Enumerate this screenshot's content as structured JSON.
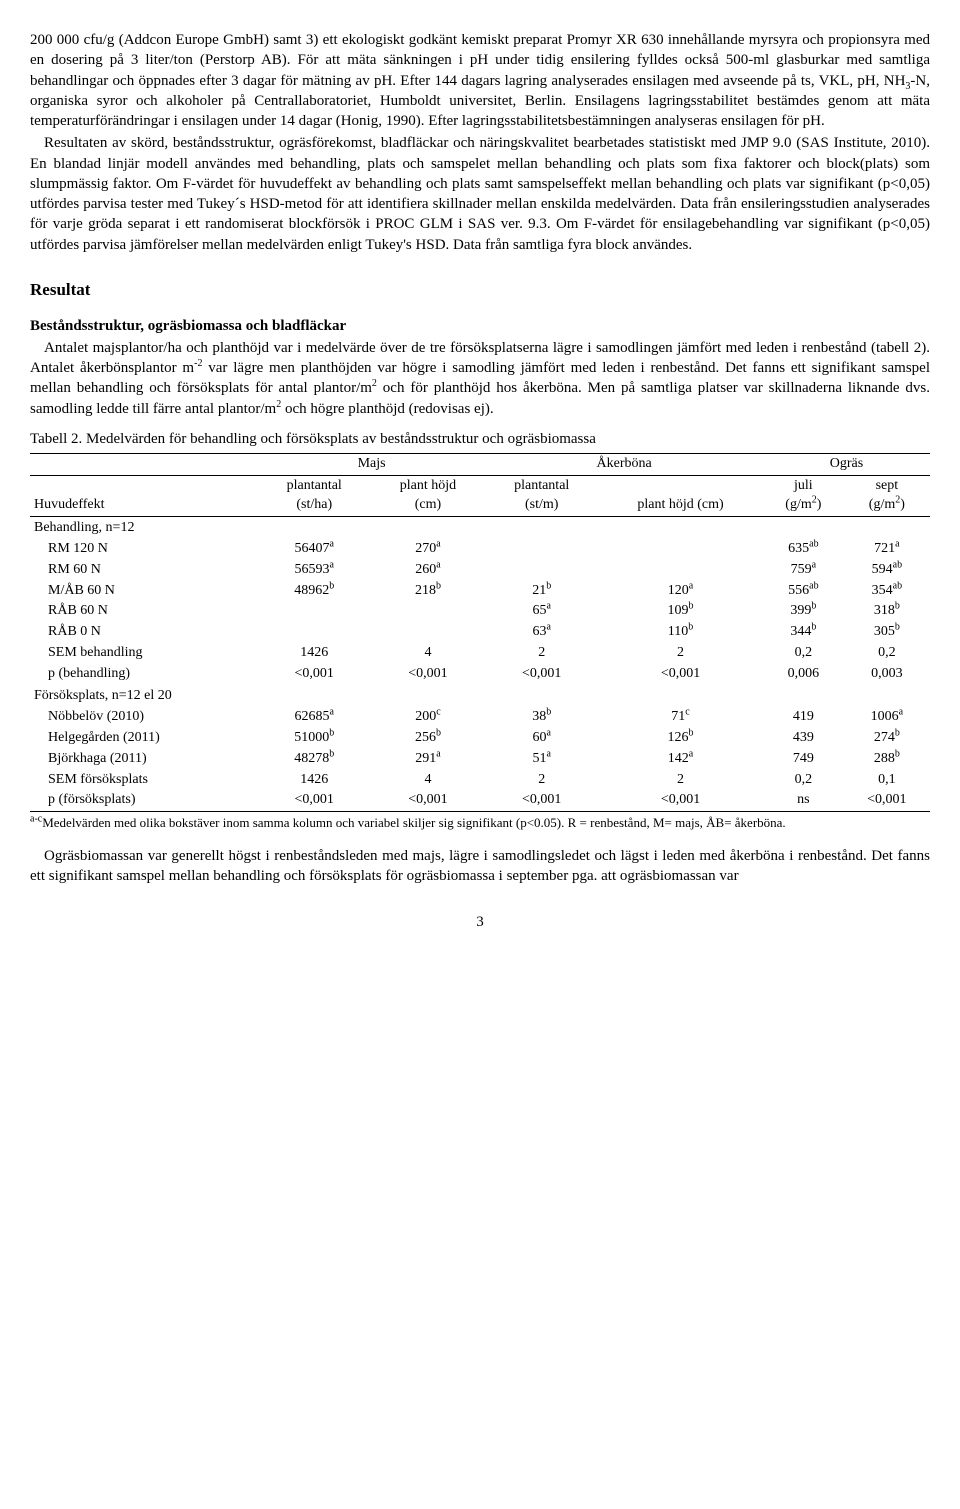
{
  "para1": "200 000 cfu/g (Addcon Europe GmbH) samt 3) ett ekologiskt godkänt kemiskt preparat Promyr XR 630 innehållande myrsyra och propionsyra med en dosering på 3 liter/ton (Perstorp AB). För att mäta sänkningen i pH under tidig ensilering fylldes också 500-ml glasburkar med samtliga behandlingar och öppnades efter 3 dagar för mätning av pH. Efter 144 dagars lagring analyserades ensilagen med avseende på ts, VKL, pH, NH",
  "para1b": "-N, organiska syror och alkoholer på Centrallaboratoriet, Humboldt universitet, Berlin. Ensilagens lagringsstabilitet bestämdes genom att mäta temperaturförändringar i ensilagen under 14 dagar (Honig, 1990). Efter lagringsstabilitetsbestämningen analyseras ensilagen för pH.",
  "para2": "Resultaten av skörd, beståndsstruktur, ogräsförekomst, bladfläckar och näringskvalitet bearbetades statistiskt med JMP 9.0 (SAS Institute, 2010). En blandad linjär modell användes med behandling, plats och samspelet mellan behandling och plats som fixa faktorer och block(plats) som slumpmässig faktor. Om F-värdet för huvudeffekt av behandling och plats samt samspelseffekt mellan behandling och plats var signifikant (p<0,05) utfördes parvisa tester med Tukey´s HSD-metod för att identifiera skillnader mellan enskilda medelvärden. Data från ensileringsstudien analyserades för varje gröda separat i ett randomiserat blockförsök i PROC GLM i SAS ver. 9.3. Om F-värdet för ensilagebehandling var signifikant (p<0,05) utfördes parvisa jämförelser mellan medelvärden enligt Tukey's HSD. Data från samtliga fyra block användes.",
  "resultat_title": "Resultat",
  "sub_title": "Beståndsstruktur, ogräsbiomassa och bladfläckar",
  "para3a": "Antalet majsplantor/ha och planthöjd var i medelvärde över de tre försöksplatserna lägre i samodlingen jämfört med leden i renbestånd (tabell 2). Antalet åkerbönsplantor m",
  "para3b": " var lägre men planthöjden var högre i samodling jämfört med leden i renbestånd. Det fanns ett signifikant samspel mellan behandling och försöksplats för antal plantor/m",
  "para3c": " och för planthöjd hos åkerböna. Men på samtliga platser var skillnaderna liknande dvs. samodling ledde till färre antal plantor/m",
  "para3d": " och högre planthöjd (redovisas ej).",
  "table_caption": "Tabell 2. Medelvärden för behandling och försöksplats av beståndsstruktur och ogräsbiomassa",
  "group_headers": [
    "",
    "Majs",
    "Åkerböna",
    "Ogräs"
  ],
  "col_headers": {
    "c0": "Huvudeffekt",
    "c1a": "plantantal",
    "c1b": "(st/ha)",
    "c2a": "plant höjd",
    "c2b": "(cm)",
    "c3a": "plantantal",
    "c3b": "(st/m)",
    "c4a": "plant höjd (cm)",
    "c5a": "juli",
    "c5b": "(g/m",
    "c6a": "sept",
    "c6b": "(g/m"
  },
  "section_rows": {
    "beh": "Behandling, n=12",
    "plats": "Försöksplats, n=12 el 20"
  },
  "rows": [
    {
      "l": "RM 120 N",
      "v": [
        "56407",
        "a",
        "270",
        "a",
        "",
        "",
        "",
        "",
        "635",
        "ab",
        "721",
        "a"
      ]
    },
    {
      "l": "RM 60 N",
      "v": [
        "56593",
        "a",
        "260",
        "a",
        "",
        "",
        "",
        "",
        "759",
        "a",
        "594",
        "ab"
      ]
    },
    {
      "l": "M/ÅB 60 N",
      "v": [
        "48962",
        "b",
        "218",
        "b",
        "21",
        "b",
        "120",
        "a",
        "556",
        "ab",
        "354",
        "ab"
      ]
    },
    {
      "l": "RÅB 60 N",
      "v": [
        "",
        "",
        "",
        "",
        "65",
        "a",
        "109",
        "b",
        "399",
        "b",
        "318",
        "b"
      ]
    },
    {
      "l": "RÅB 0 N",
      "v": [
        "",
        "",
        "",
        "",
        "63",
        "a",
        "110",
        "b",
        "344",
        "b",
        "305",
        "b"
      ]
    },
    {
      "l": "SEM behandling",
      "v": [
        "1426",
        "",
        "4",
        "",
        "2",
        "",
        "2",
        "",
        "0,2",
        "",
        "0,2",
        ""
      ]
    },
    {
      "l": "p (behandling)",
      "v": [
        "<0,001",
        "",
        "<0,001",
        "",
        "<0,001",
        "",
        "<0,001",
        "",
        "0,006",
        "",
        "0,003",
        ""
      ]
    }
  ],
  "rows2": [
    {
      "l": "Nöbbelöv (2010)",
      "v": [
        "62685",
        "a",
        "200",
        "c",
        "38",
        "b",
        "71",
        "c",
        "419",
        "",
        "1006",
        "a"
      ]
    },
    {
      "l": "Helgegården (2011)",
      "v": [
        "51000",
        "b",
        "256",
        "b",
        "60",
        "a",
        "126",
        "b",
        "439",
        "",
        "274",
        "b"
      ]
    },
    {
      "l": "Björkhaga (2011)",
      "v": [
        "48278",
        "b",
        "291",
        "a",
        "51",
        "a",
        "142",
        "a",
        "749",
        "",
        "288",
        "b"
      ]
    },
    {
      "l": "SEM försöksplats",
      "v": [
        "1426",
        "",
        "4",
        "",
        "2",
        "",
        "2",
        "",
        "0,2",
        "",
        "0,1",
        ""
      ]
    },
    {
      "l": "p (försöksplats)",
      "v": [
        "<0,001",
        "",
        "<0,001",
        "",
        "<0,001",
        "",
        "<0,001",
        "",
        "ns",
        "",
        "<0,001",
        ""
      ]
    }
  ],
  "footnote_a": "a-c",
  "footnote_b": "Medelvärden med olika bokstäver inom samma kolumn och variabel skiljer sig signifikant (p<0.05). R = renbestånd, M= majs, ÅB= åkerböna.",
  "para4": "Ogräsbiomassan var generellt högst i renbeståndsleden med majs, lägre i samodlingsledet och lägst i leden med åkerböna i renbestånd. Det fanns ett signifikant samspel mellan behandling och försöksplats för ogräsbiomassa i september pga. att ogräsbiomassan var",
  "page_num": "3"
}
